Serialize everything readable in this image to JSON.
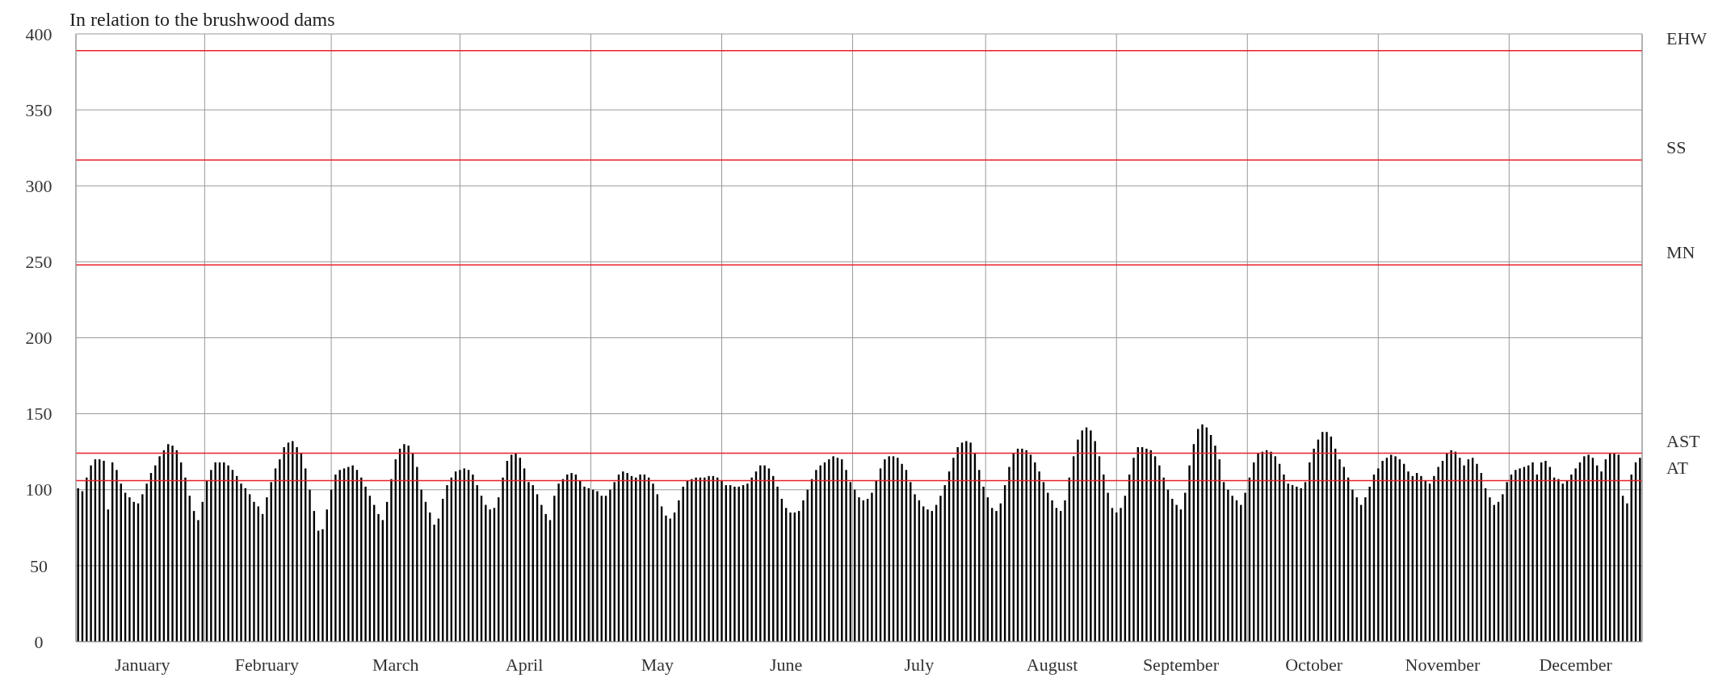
{
  "chart_data": {
    "type": "bar",
    "title": "In relation to the brushwood dams",
    "categories": [
      null,
      null,
      null,
      null,
      null,
      null,
      null,
      null,
      null,
      null,
      null,
      null,
      null,
      null,
      null,
      "January",
      null,
      null,
      null,
      null,
      null,
      null,
      null,
      null,
      null,
      null,
      null,
      null,
      null,
      null,
      null,
      null,
      null,
      null,
      null,
      null,
      null,
      null,
      null,
      null,
      null,
      null,
      null,
      null,
      "February",
      null,
      null,
      null,
      null,
      null,
      null,
      null,
      null,
      null,
      null,
      null,
      null,
      null,
      null,
      null,
      null,
      null,
      null,
      null,
      null,
      null,
      null,
      null,
      null,
      null,
      null,
      null,
      null,
      null,
      "March",
      null,
      null,
      null,
      null,
      null,
      null,
      null,
      null,
      null,
      null,
      null,
      null,
      null,
      null,
      null,
      null,
      null,
      null,
      null,
      null,
      null,
      null,
      null,
      null,
      null,
      null,
      null,
      null,
      null,
      "April",
      null,
      null,
      null,
      null,
      null,
      null,
      null,
      null,
      null,
      null,
      null,
      null,
      null,
      null,
      null,
      null,
      null,
      null,
      null,
      null,
      null,
      null,
      null,
      null,
      null,
      null,
      null,
      null,
      null,
      null,
      "May",
      null,
      null,
      null,
      null,
      null,
      null,
      null,
      null,
      null,
      null,
      null,
      null,
      null,
      null,
      null,
      null,
      null,
      null,
      null,
      null,
      null,
      null,
      null,
      null,
      null,
      null,
      null,
      null,
      null,
      "June",
      null,
      null,
      null,
      null,
      null,
      null,
      null,
      null,
      null,
      null,
      null,
      null,
      null,
      null,
      null,
      null,
      null,
      null,
      null,
      null,
      null,
      null,
      null,
      null,
      null,
      null,
      null,
      null,
      null,
      null,
      "July",
      null,
      null,
      null,
      null,
      null,
      null,
      null,
      null,
      null,
      null,
      null,
      null,
      null,
      null,
      null,
      null,
      null,
      null,
      null,
      null,
      null,
      null,
      null,
      null,
      null,
      null,
      null,
      null,
      null,
      null,
      "August",
      null,
      null,
      null,
      null,
      null,
      null,
      null,
      null,
      null,
      null,
      null,
      null,
      null,
      null,
      null,
      null,
      null,
      null,
      null,
      null,
      null,
      null,
      null,
      null,
      null,
      null,
      null,
      null,
      null,
      "September",
      null,
      null,
      null,
      null,
      null,
      null,
      null,
      null,
      null,
      null,
      null,
      null,
      null,
      null,
      null,
      null,
      null,
      null,
      null,
      null,
      null,
      null,
      null,
      null,
      null,
      null,
      null,
      null,
      null,
      null,
      "October",
      null,
      null,
      null,
      null,
      null,
      null,
      null,
      null,
      null,
      null,
      null,
      null,
      null,
      null,
      null,
      null,
      null,
      null,
      null,
      null,
      null,
      null,
      null,
      null,
      null,
      null,
      null,
      null,
      null,
      "November",
      null,
      null,
      null,
      null,
      null,
      null,
      null,
      null,
      null,
      null,
      null,
      null,
      null,
      null,
      null,
      null,
      null,
      null,
      null,
      null,
      null,
      null,
      null,
      null,
      null,
      null,
      null,
      null,
      null,
      null,
      "December",
      null,
      null,
      null,
      null,
      null,
      null,
      null,
      null,
      null,
      null,
      null,
      null,
      null,
      null,
      null
    ],
    "values": [
      101,
      99,
      108,
      116,
      120,
      120,
      119,
      87,
      118,
      113,
      104,
      98,
      95,
      92,
      91,
      97,
      104,
      111,
      116,
      122,
      126,
      130,
      129,
      126,
      118,
      108,
      96,
      86,
      80,
      92,
      106,
      113,
      118,
      118,
      118,
      116,
      113,
      109,
      104,
      101,
      97,
      92,
      89,
      84,
      95,
      105,
      114,
      120,
      128,
      131,
      132,
      128,
      124,
      114,
      100,
      86,
      73,
      74,
      87,
      100,
      110,
      113,
      114,
      115,
      116,
      113,
      108,
      102,
      96,
      90,
      84,
      80,
      92,
      107,
      120,
      127,
      130,
      129,
      124,
      115,
      100,
      92,
      85,
      77,
      81,
      94,
      103,
      108,
      112,
      113,
      114,
      113,
      110,
      103,
      96,
      90,
      87,
      88,
      95,
      108,
      119,
      123,
      124,
      121,
      114,
      105,
      103,
      97,
      90,
      84,
      80,
      96,
      104,
      107,
      110,
      111,
      110,
      106,
      102,
      101,
      100,
      99,
      96,
      96,
      100,
      105,
      110,
      112,
      111,
      109,
      108,
      110,
      110,
      108,
      104,
      97,
      89,
      83,
      81,
      85,
      93,
      102,
      106,
      107,
      108,
      108,
      108,
      109,
      109,
      108,
      106,
      103,
      103,
      102,
      102,
      103,
      104,
      108,
      112,
      116,
      116,
      114,
      109,
      102,
      94,
      88,
      85,
      85,
      86,
      93,
      100,
      107,
      113,
      116,
      118,
      120,
      122,
      121,
      120,
      113,
      105,
      100,
      95,
      93,
      94,
      98,
      106,
      114,
      120,
      122,
      122,
      121,
      117,
      113,
      105,
      97,
      93,
      89,
      87,
      86,
      90,
      96,
      103,
      112,
      121,
      128,
      131,
      132,
      131,
      124,
      113,
      102,
      95,
      88,
      86,
      91,
      103,
      115,
      124,
      127,
      127,
      126,
      123,
      118,
      112,
      105,
      98,
      93,
      88,
      86,
      93,
      108,
      122,
      133,
      139,
      141,
      139,
      132,
      122,
      110,
      98,
      88,
      85,
      88,
      96,
      110,
      121,
      128,
      128,
      127,
      126,
      122,
      116,
      108,
      100,
      94,
      90,
      87,
      98,
      116,
      130,
      140,
      143,
      141,
      136,
      129,
      120,
      105,
      100,
      96,
      93,
      90,
      98,
      108,
      118,
      124,
      125,
      126,
      125,
      122,
      117,
      110,
      104,
      103,
      102,
      101,
      105,
      118,
      127,
      133,
      138,
      138,
      135,
      127,
      120,
      115,
      108,
      100,
      95,
      90,
      95,
      102,
      110,
      114,
      119,
      121,
      123,
      122,
      120,
      117,
      112,
      109,
      111,
      109,
      106,
      104,
      109,
      115,
      119,
      124,
      126,
      125,
      121,
      116,
      120,
      121,
      117,
      111,
      101,
      95,
      90,
      92,
      97,
      105,
      110,
      113,
      114,
      115,
      116,
      118,
      110,
      118,
      119,
      115,
      108,
      107,
      104,
      106,
      110,
      114,
      118,
      122,
      123,
      121,
      116,
      112,
      120,
      124,
      124,
      123,
      96,
      91,
      110,
      118,
      121
    ],
    "color": "#000000",
    "ylim": [
      0,
      400
    ],
    "yticks": [
      0,
      50,
      100,
      150,
      200,
      250,
      300,
      350,
      400
    ],
    "grid": true,
    "ref_lines": [
      {
        "axis": "y",
        "value": 389,
        "label": "EHW",
        "color": "#e8202a"
      },
      {
        "axis": "y",
        "value": 317,
        "label": "SS",
        "color": "#e8202a"
      },
      {
        "axis": "y",
        "value": 248,
        "label": "MN",
        "color": "#e8202a"
      },
      {
        "axis": "y",
        "value": 124,
        "label": "AST",
        "color": "#e8202a"
      },
      {
        "axis": "y",
        "value": 106,
        "label": "AT",
        "color": "#e8202a"
      }
    ]
  }
}
